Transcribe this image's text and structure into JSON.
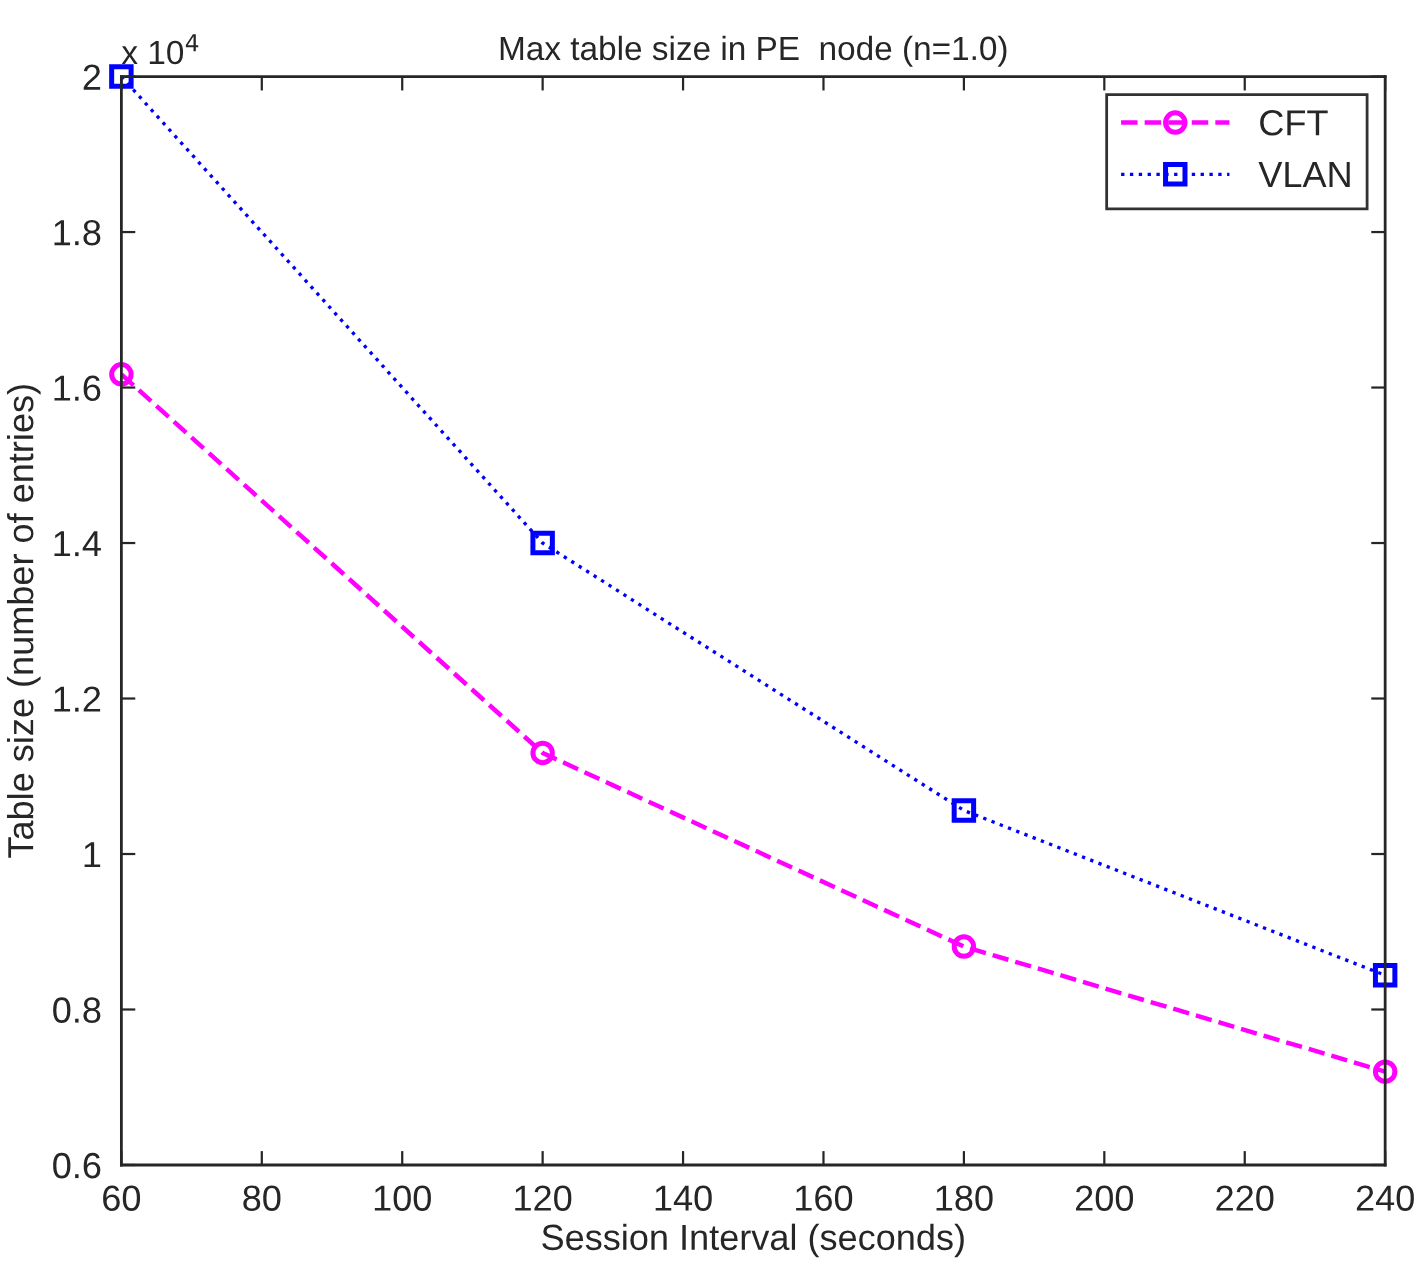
{
  "chart_data": {
    "type": "line",
    "title": "Max table size in PE  node (n=1.0)",
    "xlabel": "Session Interval (seconds)",
    "ylabel": "Table size (number of entries)",
    "x": [
      60,
      120,
      180,
      240
    ],
    "series": [
      {
        "name": "CFT",
        "color": "#ff00ff",
        "values": [
          1.617,
          1.13,
          0.881,
          0.72
        ],
        "marker": "circle",
        "line_style": "dashed"
      },
      {
        "name": "VLAN",
        "color": "#0000ff",
        "values": [
          2.0,
          1.4,
          1.056,
          0.844
        ],
        "marker": "square",
        "line_style": "dotted"
      }
    ],
    "xlim": [
      60,
      240
    ],
    "xticks": [
      60,
      80,
      100,
      120,
      140,
      160,
      180,
      200,
      220,
      240
    ],
    "ylim": [
      0.6,
      2
    ],
    "yticks": [
      0.6,
      0.8,
      1,
      1.2,
      1.4,
      1.6,
      1.8,
      2
    ],
    "annotations": [
      "x 10$^{4}$"
    ],
    "legend": "top right",
    "grid": false
  }
}
